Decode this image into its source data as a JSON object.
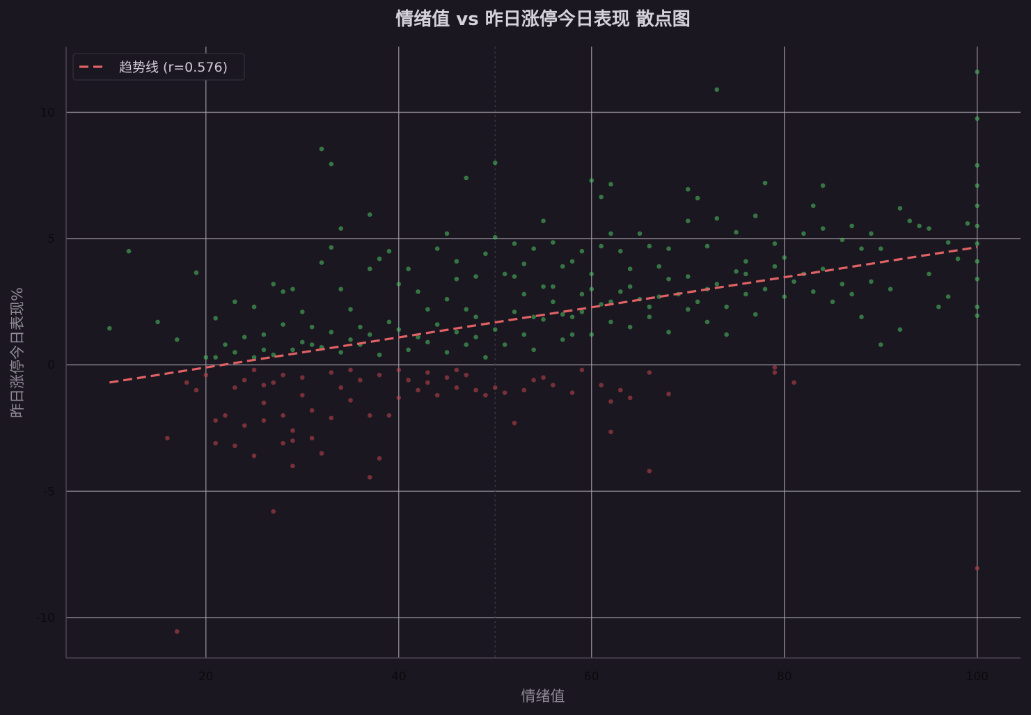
{
  "chart_data": {
    "type": "scatter",
    "title": "情绪值 vs 昨日涨停今日表现 散点图",
    "xlabel": "情绪值",
    "ylabel": "昨日涨停今日表现%",
    "xlim": [
      5.5,
      104.5
    ],
    "ylim": [
      -11.6,
      12.6
    ],
    "xticks": [
      20,
      40,
      60,
      80,
      100
    ],
    "yticks": [
      10,
      5,
      0,
      -5,
      -10
    ],
    "xtick_labels": [
      "20",
      "40",
      "60",
      "80",
      "100"
    ],
    "ytick_labels": [
      "10",
      "5",
      "0",
      "-5",
      "-10"
    ],
    "grid": true,
    "legend_position": "top-left",
    "reference_vline": 50,
    "colors": {
      "background": "#1b1720",
      "grid": "#a7a2ad",
      "axis_spine": "#4a4552",
      "title": "#d6d2dc",
      "axis_label": "#8f8a96",
      "tick_label": "#0b0a0d",
      "positive": "#4cc463",
      "negative": "#c4454f",
      "trend": "#e06265"
    },
    "trend": {
      "label": "趋势线 (r=0.576)",
      "slope": 0.0595,
      "intercept": -1.29,
      "x_range": [
        10,
        100
      ]
    },
    "series": [
      {
        "points": [
          [
            10,
            1.45
          ],
          [
            12,
            4.5
          ],
          [
            15,
            1.7
          ],
          [
            17,
            1.0
          ],
          [
            19,
            3.65
          ],
          [
            20,
            0.3
          ],
          [
            21,
            1.85
          ],
          [
            22,
            0.8
          ],
          [
            23,
            2.5
          ],
          [
            24,
            1.1
          ],
          [
            25,
            2.3
          ],
          [
            26,
            1.2
          ],
          [
            27,
            3.2
          ],
          [
            28,
            2.9
          ],
          [
            29,
            3.0
          ],
          [
            30,
            2.1
          ],
          [
            31,
            1.5
          ],
          [
            32,
            8.55
          ],
          [
            32,
            4.05
          ],
          [
            33,
            7.95
          ],
          [
            33,
            4.65
          ],
          [
            34,
            5.4
          ],
          [
            34,
            3.0
          ],
          [
            35,
            2.2
          ],
          [
            36,
            1.5
          ],
          [
            37,
            5.95
          ],
          [
            37,
            3.8
          ],
          [
            38,
            4.2
          ],
          [
            39,
            4.5
          ],
          [
            40,
            3.2
          ],
          [
            41,
            3.8
          ],
          [
            42,
            2.9
          ],
          [
            43,
            2.2
          ],
          [
            44,
            4.6
          ],
          [
            45,
            5.2
          ],
          [
            46,
            4.1
          ],
          [
            47,
            7.4
          ],
          [
            48,
            3.5
          ],
          [
            49,
            4.4
          ],
          [
            50,
            8.0
          ],
          [
            50,
            5.05
          ],
          [
            51,
            3.6
          ],
          [
            52,
            4.8
          ],
          [
            53,
            4.0
          ],
          [
            54,
            4.6
          ],
          [
            55,
            5.7
          ],
          [
            55,
            3.1
          ],
          [
            56,
            4.85
          ],
          [
            57,
            3.9
          ],
          [
            58,
            4.1
          ],
          [
            59,
            4.5
          ],
          [
            60,
            7.3
          ],
          [
            60,
            3.6
          ],
          [
            61,
            6.65
          ],
          [
            61,
            4.7
          ],
          [
            62,
            7.15
          ],
          [
            62,
            5.2
          ],
          [
            63,
            4.5
          ],
          [
            64,
            3.8
          ],
          [
            65,
            5.2
          ],
          [
            66,
            4.7
          ],
          [
            67,
            3.9
          ],
          [
            68,
            4.6
          ],
          [
            70,
            6.95
          ],
          [
            70,
            5.7
          ],
          [
            71,
            6.6
          ],
          [
            72,
            4.7
          ],
          [
            73,
            10.9
          ],
          [
            73,
            5.8
          ],
          [
            75,
            5.25
          ],
          [
            76,
            4.1
          ],
          [
            77,
            5.9
          ],
          [
            78,
            7.2
          ],
          [
            79,
            4.8
          ],
          [
            80,
            4.25
          ],
          [
            82,
            5.2
          ],
          [
            83,
            6.3
          ],
          [
            84,
            7.1
          ],
          [
            84,
            5.4
          ],
          [
            86,
            4.95
          ],
          [
            87,
            5.5
          ],
          [
            88,
            4.6
          ],
          [
            89,
            5.2
          ],
          [
            90,
            4.6
          ],
          [
            92,
            6.2
          ],
          [
            93,
            5.7
          ],
          [
            94,
            5.5
          ],
          [
            95,
            5.4
          ],
          [
            96,
            2.3
          ],
          [
            97,
            4.85
          ],
          [
            99,
            5.6
          ],
          [
            100,
            11.6
          ],
          [
            100,
            9.75
          ],
          [
            100,
            7.9
          ],
          [
            100,
            7.1
          ],
          [
            100,
            6.3
          ],
          [
            100,
            5.5
          ],
          [
            100,
            4.8
          ],
          [
            100,
            4.1
          ],
          [
            100,
            3.4
          ],
          [
            100,
            2.3
          ],
          [
            100,
            1.95
          ],
          [
            21,
            0.3
          ],
          [
            23,
            0.5
          ],
          [
            25,
            0.3
          ],
          [
            26,
            0.6
          ],
          [
            27,
            0.4
          ],
          [
            28,
            1.6
          ],
          [
            29,
            0.6
          ],
          [
            30,
            0.9
          ],
          [
            31,
            0.8
          ],
          [
            32,
            0.7
          ],
          [
            33,
            1.3
          ],
          [
            34,
            0.5
          ],
          [
            35,
            1.0
          ],
          [
            36,
            0.8
          ],
          [
            37,
            1.2
          ],
          [
            38,
            0.4
          ],
          [
            39,
            1.7
          ],
          [
            40,
            1.4
          ],
          [
            41,
            0.6
          ],
          [
            42,
            1.1
          ],
          [
            43,
            0.9
          ],
          [
            44,
            1.6
          ],
          [
            45,
            0.5
          ],
          [
            46,
            1.3
          ],
          [
            47,
            0.8
          ],
          [
            48,
            1.9
          ],
          [
            49,
            0.3
          ],
          [
            50,
            1.4
          ],
          [
            51,
            0.8
          ],
          [
            52,
            2.1
          ],
          [
            53,
            1.2
          ],
          [
            54,
            0.6
          ],
          [
            55,
            1.8
          ],
          [
            56,
            2.5
          ],
          [
            57,
            1.0
          ],
          [
            58,
            1.9
          ],
          [
            59,
            2.8
          ],
          [
            60,
            1.2
          ],
          [
            61,
            2.4
          ],
          [
            62,
            1.7
          ],
          [
            63,
            2.9
          ],
          [
            64,
            1.5
          ],
          [
            65,
            2.6
          ],
          [
            66,
            1.9
          ],
          [
            67,
            2.7
          ],
          [
            68,
            1.3
          ],
          [
            69,
            2.8
          ],
          [
            70,
            3.5
          ],
          [
            71,
            2.5
          ],
          [
            72,
            1.7
          ],
          [
            73,
            3.2
          ],
          [
            74,
            2.3
          ],
          [
            75,
            3.7
          ],
          [
            76,
            2.8
          ],
          [
            77,
            2.0
          ],
          [
            78,
            3.0
          ],
          [
            79,
            3.9
          ],
          [
            80,
            2.7
          ],
          [
            81,
            3.3
          ],
          [
            82,
            3.6
          ],
          [
            83,
            2.9
          ],
          [
            84,
            3.8
          ],
          [
            85,
            2.5
          ],
          [
            86,
            3.2
          ],
          [
            87,
            2.8
          ],
          [
            88,
            1.9
          ],
          [
            89,
            3.3
          ],
          [
            90,
            0.8
          ],
          [
            91,
            3.0
          ],
          [
            92,
            1.4
          ],
          [
            95,
            3.6
          ],
          [
            97,
            2.7
          ],
          [
            98,
            4.2
          ],
          [
            45,
            2.6
          ],
          [
            46,
            3.4
          ],
          [
            47,
            2.2
          ],
          [
            48,
            1.1
          ],
          [
            52,
            3.5
          ],
          [
            53,
            2.8
          ],
          [
            54,
            1.9
          ],
          [
            56,
            3.1
          ],
          [
            57,
            2.0
          ],
          [
            58,
            1.2
          ],
          [
            59,
            2.1
          ],
          [
            60,
            3.0
          ],
          [
            62,
            2.5
          ],
          [
            64,
            3.1
          ],
          [
            66,
            2.3
          ],
          [
            68,
            3.4
          ],
          [
            70,
            2.2
          ],
          [
            72,
            3.0
          ],
          [
            74,
            1.2
          ],
          [
            76,
            3.6
          ]
        ]
      },
      {
        "points": [
          [
            16,
            -2.9
          ],
          [
            17,
            -10.55
          ],
          [
            18,
            -0.7
          ],
          [
            19,
            -1.0
          ],
          [
            20,
            -0.4
          ],
          [
            21,
            -2.2
          ],
          [
            21,
            -3.1
          ],
          [
            22,
            -2.0
          ],
          [
            23,
            -3.2
          ],
          [
            24,
            -2.4
          ],
          [
            25,
            -3.6
          ],
          [
            26,
            -1.5
          ],
          [
            26,
            -2.2
          ],
          [
            27,
            -5.8
          ],
          [
            27,
            -0.7
          ],
          [
            28,
            -2.0
          ],
          [
            28,
            -3.1
          ],
          [
            29,
            -2.6
          ],
          [
            29,
            -3.0
          ],
          [
            29,
            -4.0
          ],
          [
            30,
            -1.2
          ],
          [
            31,
            -1.8
          ],
          [
            31,
            -2.9
          ],
          [
            32,
            -3.5
          ],
          [
            33,
            -2.1
          ],
          [
            34,
            -0.9
          ],
          [
            35,
            -1.4
          ],
          [
            36,
            -0.6
          ],
          [
            37,
            -2.0
          ],
          [
            37,
            -4.45
          ],
          [
            38,
            -3.7
          ],
          [
            39,
            -2.0
          ],
          [
            40,
            -1.3
          ],
          [
            41,
            -0.6
          ],
          [
            42,
            -1.0
          ],
          [
            43,
            -0.7
          ],
          [
            44,
            -1.2
          ],
          [
            45,
            -0.5
          ],
          [
            46,
            -0.9
          ],
          [
            47,
            -0.4
          ],
          [
            48,
            -1.0
          ],
          [
            49,
            -1.2
          ],
          [
            50,
            -0.9
          ],
          [
            51,
            -1.1
          ],
          [
            52,
            -2.3
          ],
          [
            53,
            -1.0
          ],
          [
            54,
            -0.6
          ],
          [
            55,
            -0.5
          ],
          [
            56,
            -0.8
          ],
          [
            58,
            -1.1
          ],
          [
            59,
            -0.2
          ],
          [
            61,
            -0.8
          ],
          [
            62,
            -1.45
          ],
          [
            62,
            -2.65
          ],
          [
            63,
            -1.0
          ],
          [
            64,
            -1.3
          ],
          [
            66,
            -4.2
          ],
          [
            66,
            -0.3
          ],
          [
            68,
            -1.15
          ],
          [
            79,
            -0.1
          ],
          [
            79,
            -0.3
          ],
          [
            81,
            -0.7
          ],
          [
            100,
            -8.05
          ],
          [
            30,
            -0.5
          ],
          [
            33,
            -0.3
          ],
          [
            35,
            -0.2
          ],
          [
            38,
            -0.4
          ],
          [
            40,
            -0.2
          ],
          [
            43,
            -0.3
          ],
          [
            46,
            -0.2
          ],
          [
            23,
            -0.9
          ],
          [
            24,
            -0.6
          ],
          [
            25,
            -0.2
          ],
          [
            26,
            -0.8
          ],
          [
            28,
            -0.4
          ]
        ]
      }
    ]
  }
}
